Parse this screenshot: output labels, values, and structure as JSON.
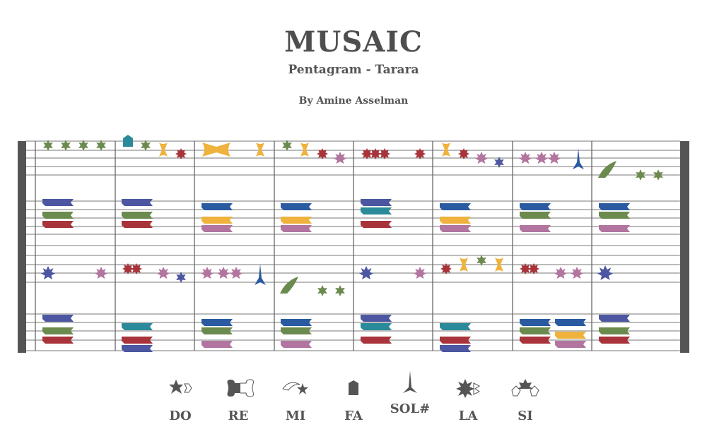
{
  "header": {
    "title": "MUSAIC",
    "subtitle": "Pentagram - Tarara",
    "byline": "By Amine Asselman"
  },
  "colors": {
    "green": "#6b8a4e",
    "teal": "#2a8a99",
    "yellow": "#efb23d",
    "red": "#a8333a",
    "pink": "#b1759f",
    "blue": "#2a5aa2",
    "purple": "#4c56a1",
    "darkgray": "#555555"
  },
  "legend": [
    {
      "label": "DO",
      "icon": "do-star-icon"
    },
    {
      "label": "RE",
      "icon": "re-bone-icon"
    },
    {
      "label": "MI",
      "icon": "mi-crescent-icon"
    },
    {
      "label": "FA",
      "icon": "fa-pentagon-icon"
    },
    {
      "label": "SOL#",
      "icon": "sol-sharp-spike-icon"
    },
    {
      "label": "LA",
      "icon": "la-maple-icon"
    },
    {
      "label": "SI",
      "icon": "si-leaf-icon"
    }
  ]
}
